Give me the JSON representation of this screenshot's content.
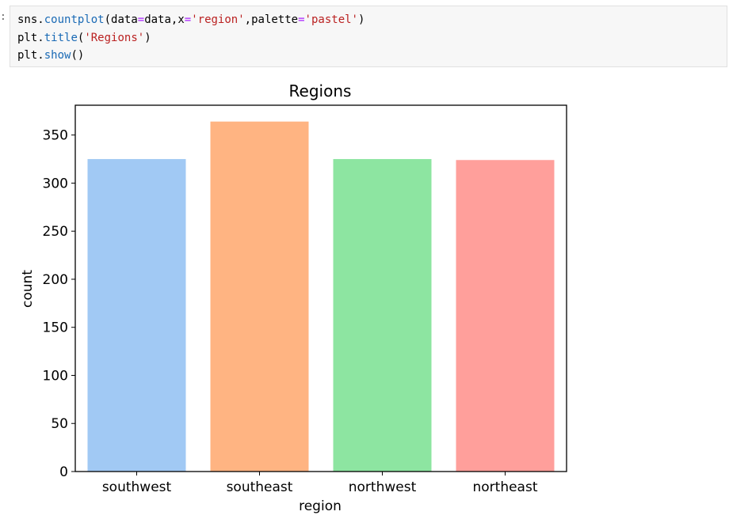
{
  "cell": {
    "prompt": ":",
    "code": [
      [
        {
          "t": "sns",
          "c": "id"
        },
        {
          "t": ".",
          "c": "punc"
        },
        {
          "t": "countplot",
          "c": "func"
        },
        {
          "t": "(",
          "c": "punc"
        },
        {
          "t": "data",
          "c": "id"
        },
        {
          "t": "=",
          "c": "op"
        },
        {
          "t": "data",
          "c": "id"
        },
        {
          "t": ",",
          "c": "punc"
        },
        {
          "t": "x",
          "c": "id"
        },
        {
          "t": "=",
          "c": "op"
        },
        {
          "t": "'region'",
          "c": "str"
        },
        {
          "t": ",",
          "c": "punc"
        },
        {
          "t": "palette",
          "c": "id"
        },
        {
          "t": "=",
          "c": "op"
        },
        {
          "t": "'pastel'",
          "c": "str"
        },
        {
          "t": ")",
          "c": "punc"
        }
      ],
      [
        {
          "t": "plt",
          "c": "id"
        },
        {
          "t": ".",
          "c": "punc"
        },
        {
          "t": "title",
          "c": "func"
        },
        {
          "t": "(",
          "c": "punc"
        },
        {
          "t": "'Regions'",
          "c": "str"
        },
        {
          "t": ")",
          "c": "punc"
        }
      ],
      [
        {
          "t": "plt",
          "c": "id"
        },
        {
          "t": ".",
          "c": "punc"
        },
        {
          "t": "show",
          "c": "func"
        },
        {
          "t": "()",
          "c": "punc"
        }
      ]
    ]
  },
  "chart_data": {
    "type": "bar",
    "title": "Regions",
    "xlabel": "region",
    "ylabel": "count",
    "categories": [
      "southwest",
      "southeast",
      "northwest",
      "northeast"
    ],
    "values": [
      325,
      364,
      325,
      324
    ],
    "colors": [
      "#a1c9f4",
      "#ffb482",
      "#8de5a1",
      "#ff9f9b"
    ],
    "ylim": [
      0,
      381
    ],
    "yticks": [
      0,
      50,
      100,
      150,
      200,
      250,
      300,
      350
    ],
    "grid": false,
    "legend": "none"
  }
}
